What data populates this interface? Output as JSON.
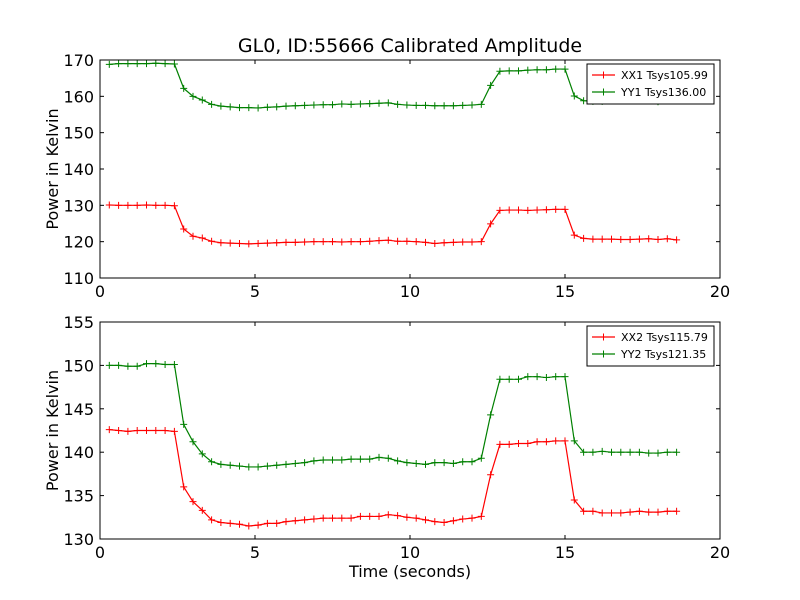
{
  "title": "GL0, ID:55666 Calibrated Amplitude",
  "chart_data": [
    {
      "type": "line",
      "title": "GL0, ID:55666 Calibrated Amplitude",
      "xlabel": "",
      "ylabel": "Power in Kelvin",
      "xlim": [
        0,
        20
      ],
      "ylim": [
        110,
        170
      ],
      "xticks": [
        0,
        5,
        10,
        15,
        20
      ],
      "yticks": [
        110,
        120,
        130,
        140,
        150,
        160,
        170
      ],
      "legend_position": "top-right",
      "grid": false,
      "x": [
        0.3,
        0.6,
        0.9,
        1.2,
        1.5,
        1.8,
        2.1,
        2.4,
        2.7,
        3.0,
        3.3,
        3.6,
        3.9,
        4.2,
        4.5,
        4.8,
        5.1,
        5.4,
        5.7,
        6.0,
        6.3,
        6.6,
        6.9,
        7.2,
        7.5,
        7.8,
        8.1,
        8.4,
        8.7,
        9.0,
        9.3,
        9.6,
        9.9,
        10.2,
        10.5,
        10.8,
        11.1,
        11.4,
        11.7,
        12.0,
        12.3,
        12.6,
        12.9,
        13.2,
        13.5,
        13.8,
        14.1,
        14.4,
        14.7,
        15.0,
        15.3,
        15.6,
        15.9,
        16.2,
        16.5,
        16.8,
        17.1,
        17.4,
        17.7,
        18.0,
        18.3,
        18.6
      ],
      "series": [
        {
          "name": "XX1 Tsys105.99",
          "color": "#ff0000",
          "values": [
            130.1,
            130.0,
            130.0,
            130.0,
            130.1,
            130.0,
            130.0,
            129.9,
            123.5,
            121.5,
            121.0,
            120.1,
            119.7,
            119.6,
            119.5,
            119.4,
            119.5,
            119.6,
            119.7,
            119.8,
            119.8,
            119.9,
            120.0,
            120.0,
            120.0,
            119.9,
            120.0,
            120.0,
            120.1,
            120.3,
            120.4,
            120.1,
            120.1,
            120.0,
            119.8,
            119.5,
            119.7,
            119.8,
            119.9,
            119.9,
            120.0,
            124.9,
            128.6,
            128.7,
            128.7,
            128.6,
            128.7,
            128.8,
            128.9,
            128.9,
            121.8,
            120.9,
            120.7,
            120.7,
            120.7,
            120.6,
            120.6,
            120.7,
            120.8,
            120.6,
            120.8,
            120.5
          ]
        },
        {
          "name": "YY1 Tsys136.00",
          "color": "#008000",
          "values": [
            168.8,
            169.0,
            169.0,
            169.0,
            169.0,
            169.1,
            169.0,
            168.9,
            162.2,
            160.0,
            159.0,
            157.8,
            157.3,
            157.1,
            156.9,
            156.9,
            156.8,
            157.0,
            157.1,
            157.3,
            157.4,
            157.5,
            157.6,
            157.7,
            157.7,
            157.9,
            157.8,
            157.9,
            158.0,
            158.1,
            158.2,
            157.8,
            157.6,
            157.5,
            157.5,
            157.4,
            157.4,
            157.4,
            157.5,
            157.6,
            157.8,
            163.0,
            166.9,
            167.0,
            167.0,
            167.2,
            167.3,
            167.3,
            167.5,
            167.5,
            160.1,
            158.8,
            158.6,
            158.6,
            158.7,
            158.7,
            158.8,
            158.9,
            159.0,
            158.5,
            158.7,
            158.8
          ]
        }
      ]
    },
    {
      "type": "line",
      "title": "",
      "xlabel": "Time (seconds)",
      "ylabel": "Power in Kelvin",
      "xlim": [
        0,
        20
      ],
      "ylim": [
        130,
        155
      ],
      "xticks": [
        0,
        5,
        10,
        15,
        20
      ],
      "yticks": [
        130,
        135,
        140,
        145,
        150,
        155
      ],
      "legend_position": "top-right",
      "grid": false,
      "x": [
        0.3,
        0.6,
        0.9,
        1.2,
        1.5,
        1.8,
        2.1,
        2.4,
        2.7,
        3.0,
        3.3,
        3.6,
        3.9,
        4.2,
        4.5,
        4.8,
        5.1,
        5.4,
        5.7,
        6.0,
        6.3,
        6.6,
        6.9,
        7.2,
        7.5,
        7.8,
        8.1,
        8.4,
        8.7,
        9.0,
        9.3,
        9.6,
        9.9,
        10.2,
        10.5,
        10.8,
        11.1,
        11.4,
        11.7,
        12.0,
        12.3,
        12.6,
        12.9,
        13.2,
        13.5,
        13.8,
        14.1,
        14.4,
        14.7,
        15.0,
        15.3,
        15.6,
        15.9,
        16.2,
        16.5,
        16.8,
        17.1,
        17.4,
        17.7,
        18.0,
        18.3,
        18.6
      ],
      "series": [
        {
          "name": "XX2 Tsys115.79",
          "color": "#ff0000",
          "values": [
            142.6,
            142.5,
            142.4,
            142.5,
            142.5,
            142.5,
            142.5,
            142.4,
            136.0,
            134.3,
            133.3,
            132.2,
            131.9,
            131.8,
            131.7,
            131.5,
            131.6,
            131.8,
            131.8,
            132.0,
            132.1,
            132.2,
            132.3,
            132.4,
            132.4,
            132.4,
            132.4,
            132.6,
            132.6,
            132.6,
            132.8,
            132.7,
            132.5,
            132.4,
            132.2,
            132.0,
            131.9,
            132.1,
            132.3,
            132.4,
            132.6,
            137.4,
            140.9,
            140.9,
            141.0,
            141.0,
            141.2,
            141.2,
            141.3,
            141.3,
            134.5,
            133.2,
            133.2,
            133.0,
            133.0,
            133.0,
            133.1,
            133.2,
            133.1,
            133.1,
            133.2,
            133.2
          ]
        },
        {
          "name": "YY2 Tsys121.35",
          "color": "#008000",
          "values": [
            150.0,
            150.0,
            149.9,
            149.9,
            150.2,
            150.2,
            150.1,
            150.1,
            143.2,
            141.2,
            139.8,
            138.9,
            138.6,
            138.5,
            138.4,
            138.3,
            138.3,
            138.4,
            138.5,
            138.6,
            138.7,
            138.8,
            139.0,
            139.1,
            139.1,
            139.1,
            139.2,
            139.2,
            139.2,
            139.4,
            139.3,
            139.0,
            138.8,
            138.7,
            138.6,
            138.8,
            138.8,
            138.7,
            138.9,
            138.9,
            139.3,
            144.3,
            148.4,
            148.4,
            148.4,
            148.7,
            148.7,
            148.6,
            148.7,
            148.7,
            141.3,
            140.0,
            140.0,
            140.1,
            140.0,
            140.0,
            140.0,
            140.0,
            139.9,
            139.9,
            140.0,
            140.0
          ]
        }
      ]
    }
  ]
}
